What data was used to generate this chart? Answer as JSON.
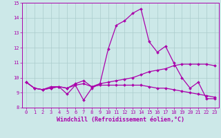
{
  "xlabel": "Windchill (Refroidissement éolien,°C)",
  "xlim": [
    -0.5,
    23.5
  ],
  "ylim": [
    8,
    15
  ],
  "xticks": [
    0,
    1,
    2,
    3,
    4,
    5,
    6,
    7,
    8,
    9,
    10,
    11,
    12,
    13,
    14,
    15,
    16,
    17,
    18,
    19,
    20,
    21,
    22,
    23
  ],
  "yticks": [
    8,
    9,
    10,
    11,
    12,
    13,
    14,
    15
  ],
  "background_color": "#cce8e8",
  "line_color": "#aa00aa",
  "line1_y": [
    9.7,
    9.3,
    9.2,
    9.4,
    9.4,
    8.9,
    9.5,
    8.5,
    9.3,
    9.6,
    11.9,
    13.5,
    13.8,
    14.3,
    14.6,
    12.4,
    11.7,
    12.1,
    11.0,
    10.0,
    9.3,
    9.7,
    8.6,
    8.6
  ],
  "line2_y": [
    9.7,
    9.3,
    9.2,
    9.3,
    9.4,
    9.3,
    9.6,
    9.8,
    9.4,
    9.6,
    9.7,
    9.8,
    9.9,
    10.0,
    10.2,
    10.4,
    10.5,
    10.6,
    10.8,
    10.9,
    10.9,
    10.9,
    10.9,
    10.8
  ],
  "line3_y": [
    9.7,
    9.3,
    9.2,
    9.3,
    9.4,
    9.3,
    9.5,
    9.6,
    9.4,
    9.5,
    9.5,
    9.5,
    9.5,
    9.5,
    9.5,
    9.4,
    9.3,
    9.3,
    9.2,
    9.1,
    9.0,
    8.9,
    8.8,
    8.7
  ],
  "marker": "D",
  "markersize": 2.0,
  "linewidth": 0.9,
  "grid_color": "#aacccc",
  "tick_fontsize": 5.0,
  "label_fontsize": 6.0
}
